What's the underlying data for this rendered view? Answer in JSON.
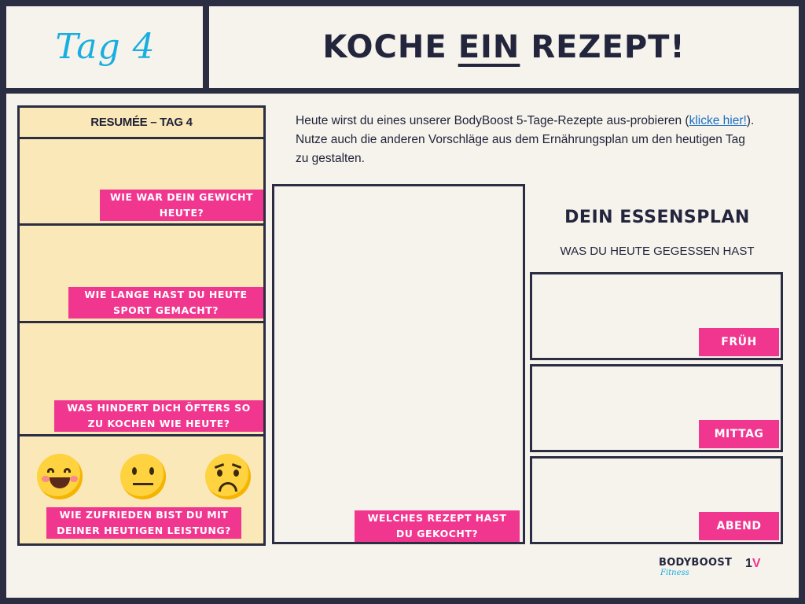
{
  "header": {
    "day": "Tag 4",
    "title_pre": "KOCHE",
    "title_mid": "EIN",
    "title_post": "REZEPT!"
  },
  "resume": {
    "heading": "RESUMÉE – TAG 4",
    "questions": [
      {
        "line1": "WIE WAR DEIN GEWICHT",
        "line2": "HEUTE?"
      },
      {
        "line1": "WIE LANGE HAST DU HEUTE",
        "line2": "SPORT GEMACHT?"
      },
      {
        "line1": "WAS HINDERT DICH ÖFTERS SO",
        "line2": "ZU KOCHEN WIE HEUTE?"
      },
      {
        "line1": "WIE ZUFRIEDEN BIST DU MIT",
        "line2": "DEINER HEUTIGEN LEISTUNG?"
      }
    ],
    "emojis": [
      "happy-face-icon",
      "neutral-face-icon",
      "worried-face-icon"
    ]
  },
  "intro": {
    "text_before": "Heute wirst du eines unserer BodyBoost 5-Tage-Rezepte aus-probieren (",
    "link": "klicke hier!",
    "text_after": "). Nutze auch die anderen Vorschläge aus dem Ernährungsplan um den heutigen Tag zu gestalten."
  },
  "recipe": {
    "question_line1": "WELCHES REZEPT HAST",
    "question_line2": "DU GEKOCHT?"
  },
  "plan": {
    "title": "DEIN ESSENSPLAN",
    "subtitle": "WAS DU HEUTE GEGESSEN HAST",
    "meals": [
      "FRÜH",
      "MITTAG",
      "ABEND"
    ]
  },
  "logo": {
    "brand": "BODYBOOST",
    "sub": "Fitness",
    "mark_a": "1",
    "mark_b": "V"
  },
  "colors": {
    "accent_pink": "#f0368f",
    "accent_blue": "#19aee0",
    "navy": "#2b2d42",
    "panel_yellow": "#fbe8b8"
  }
}
